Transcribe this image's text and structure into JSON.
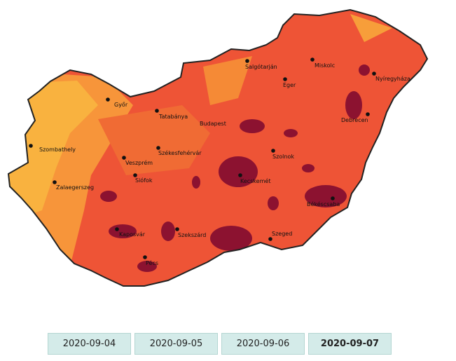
{
  "cities": [
    "Győr",
    "Tatabánya",
    "Budapest",
    "Salgótarján",
    "Miskolc",
    "Eger",
    "Nyíregyháza",
    "Debrecen",
    "Szombathely",
    "Székesfehérvár",
    "Veszprém",
    "Szolnok",
    "Siófok",
    "Kecskemét",
    "Zalaegerszeg",
    "Békéscsaba",
    "Kaposvár",
    "Szekszárd",
    "Szeged",
    "Pécs"
  ],
  "dates": [
    "2020-09-04",
    "2020-09-05",
    "2020-09-06",
    "2020-09-07"
  ]
}
